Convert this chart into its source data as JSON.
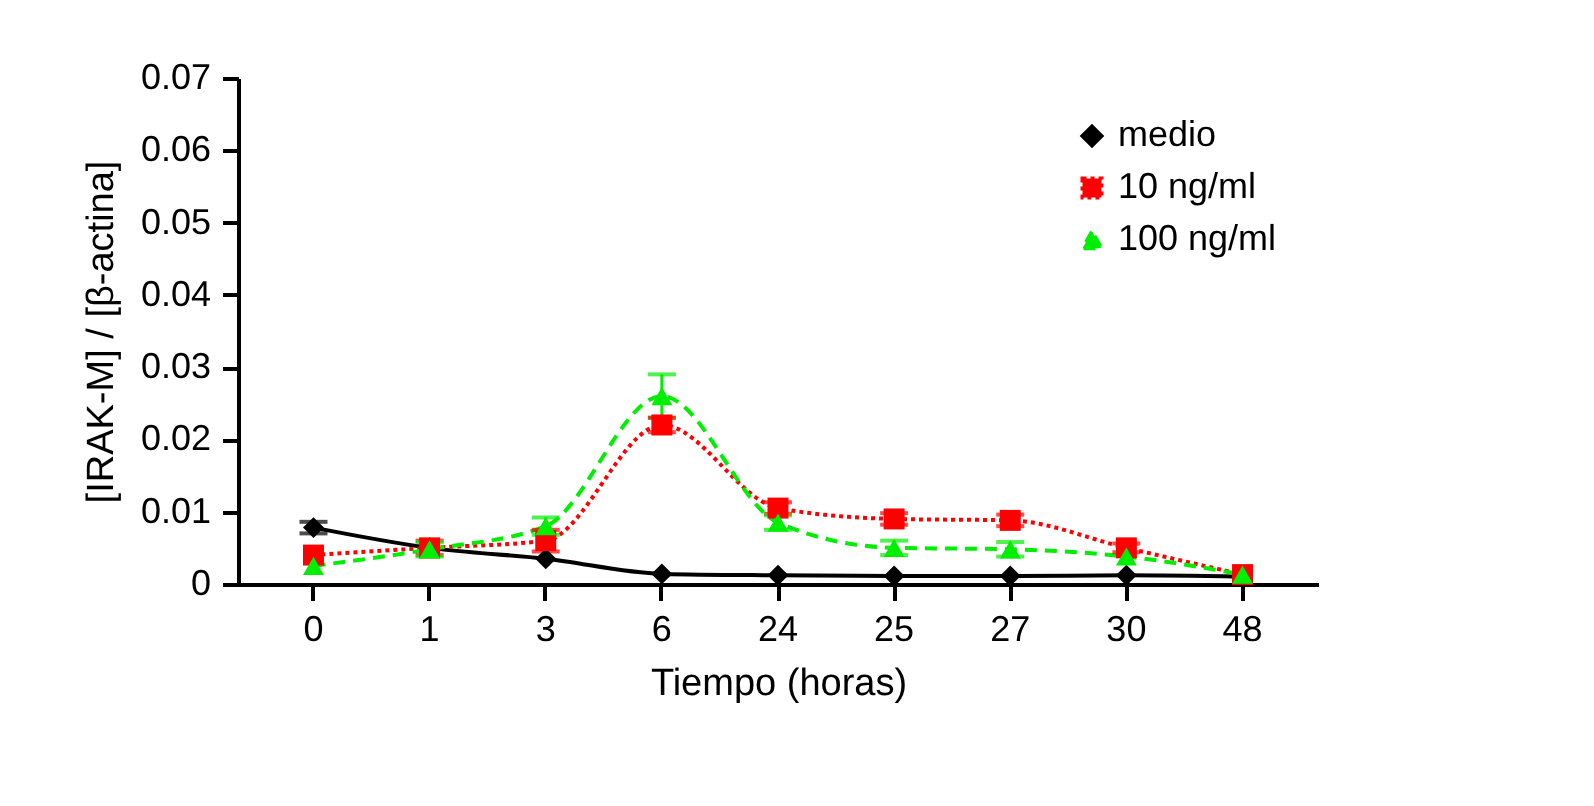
{
  "chart_data": {
    "type": "line",
    "xlabel": "Tiempo (horas)",
    "ylabel": "[IRAK-M] / [β-actina]",
    "categories": [
      "0",
      "1",
      "3",
      "6",
      "24",
      "25",
      "27",
      "30",
      "48"
    ],
    "series": [
      {
        "name": "medio",
        "color": "#000000",
        "marker": "diamond",
        "line_style": "solid",
        "values": [
          0.0078,
          0.005,
          0.0035,
          0.0014,
          0.0012,
          0.0011,
          0.0011,
          0.0012,
          0.001
        ],
        "errors": [
          0.0008,
          null,
          null,
          null,
          null,
          null,
          null,
          null,
          null
        ]
      },
      {
        "name": "10 ng/ml",
        "color": "#ff0000",
        "marker": "square",
        "line_style": "dotted",
        "values": [
          0.004,
          0.005,
          0.006,
          0.022,
          0.0105,
          0.009,
          0.0088,
          0.005,
          0.0013
        ],
        "errors": [
          null,
          0.001,
          0.0015,
          0.001,
          0.0008,
          0.0008,
          0.0008,
          0.0006,
          null
        ]
      },
      {
        "name": "100 ng/ml",
        "color": "#00ee00",
        "marker": "triangle",
        "line_style": "dashed",
        "values": [
          0.0025,
          0.0048,
          0.008,
          0.026,
          0.0085,
          0.005,
          0.0048,
          0.0038,
          0.0013
        ],
        "errors": [
          null,
          0.001,
          0.0012,
          0.003,
          0.001,
          0.001,
          0.001,
          null,
          null
        ]
      }
    ],
    "ylim": [
      0,
      0.07
    ],
    "yticks": [
      0,
      0.01,
      0.02,
      0.03,
      0.04,
      0.05,
      0.06,
      0.07
    ],
    "grid": false,
    "legend": "top right"
  }
}
